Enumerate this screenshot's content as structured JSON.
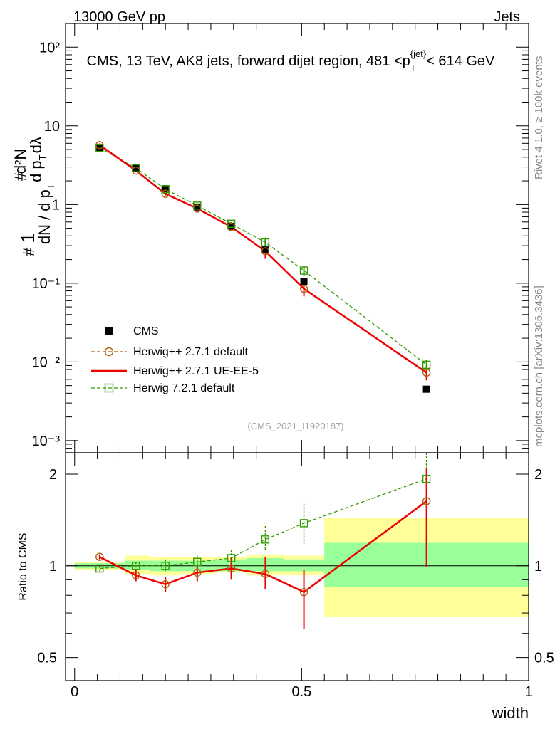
{
  "header": {
    "left": "13000 GeV pp",
    "right": "Jets",
    "main_title": "CMS, 13 TeV, AK8 jets, forward dijet region, 481 <p_T^{jet}< 614 GeV"
  },
  "side_labels": {
    "rivet": "Rivet 4.1.0, ≥ 100k events",
    "mcplots": "mcplots.cern.ch [arXiv:1306.3436]"
  },
  "analysis_tag": "(CMS_2021_I1920187)",
  "colors": {
    "data": "#000000",
    "herwigpp_default": "#b06010",
    "herwigpp_ueee5": "#ee0000",
    "herwig7": "#339900",
    "band_inner": "#99ff99",
    "band_outer": "#ffff99"
  },
  "chart_data": [
    {
      "type": "scatter",
      "panel": "main",
      "yscale": "log",
      "ylim": [
        0.0007,
        200
      ],
      "xlim": [
        -0.02,
        1.0
      ],
      "ylabel": "1 / (dN/dp_T) · d²N/(dp_T dλ)",
      "x_ticks": [
        "0",
        "0.5",
        "1"
      ],
      "y_ticks": [
        "10⁻³",
        "10⁻²",
        "10⁻¹",
        "1",
        "10",
        "10²"
      ],
      "x": [
        0.055,
        0.135,
        0.2,
        0.27,
        0.345,
        0.42,
        0.505,
        0.775
      ],
      "bin_edges": [
        0.0,
        0.11,
        0.165,
        0.235,
        0.305,
        0.38,
        0.46,
        0.55,
        1.0
      ],
      "series": [
        {
          "name": "CMS",
          "style": "square-filled",
          "values": [
            5.3,
            2.9,
            1.55,
            0.93,
            0.53,
            0.27,
            0.105,
            0.0045
          ]
        },
        {
          "name": "Herwig++ 2.7.1 default",
          "style": "circle-open-dashed",
          "values": [
            5.7,
            2.7,
            1.37,
            0.89,
            0.52,
            0.255,
            0.085,
            0.0073
          ]
        },
        {
          "name": "Herwig++ 2.7.1 UE-EE-5",
          "style": "solid-line",
          "values": [
            5.7,
            2.7,
            1.37,
            0.89,
            0.52,
            0.255,
            0.085,
            0.0073
          ]
        },
        {
          "name": "Herwig 7.2.1 default",
          "style": "square-open-dashed",
          "values": [
            5.25,
            2.9,
            1.57,
            0.97,
            0.57,
            0.33,
            0.145,
            0.0092
          ]
        }
      ]
    },
    {
      "type": "line",
      "panel": "ratio",
      "ylabel": "Ratio to CMS",
      "xlabel": "width",
      "ylim": [
        0.42,
        2.35
      ],
      "x_ticks": [
        "0",
        "0.5",
        "1"
      ],
      "y_ticks": [
        "0.5",
        "1",
        "2"
      ],
      "x": [
        0.055,
        0.135,
        0.2,
        0.27,
        0.345,
        0.42,
        0.505,
        0.775
      ],
      "bands": {
        "bin_edges": [
          0.0,
          0.11,
          0.165,
          0.235,
          0.305,
          0.38,
          0.46,
          0.55,
          1.0
        ],
        "inner": [
          [
            0.98,
            1.02
          ],
          [
            0.97,
            1.04
          ],
          [
            0.96,
            1.04
          ],
          [
            0.96,
            1.04
          ],
          [
            0.96,
            1.05
          ],
          [
            0.96,
            1.06
          ],
          [
            0.96,
            1.05
          ],
          [
            0.85,
            1.19
          ]
        ],
        "outer": [
          [
            0.97,
            1.03
          ],
          [
            0.94,
            1.08
          ],
          [
            0.93,
            1.07
          ],
          [
            0.94,
            1.07
          ],
          [
            0.95,
            1.07
          ],
          [
            0.93,
            1.09
          ],
          [
            0.93,
            1.08
          ],
          [
            0.68,
            1.44
          ]
        ]
      },
      "series": [
        {
          "name": "Herwig++ 2.7.1 UE-EE-5",
          "values": [
            1.07,
            0.93,
            0.87,
            0.95,
            0.98,
            0.94,
            0.82,
            1.63
          ],
          "err_lo": [
            0.02,
            0.04,
            0.05,
            0.06,
            0.08,
            0.1,
            0.2,
            0.64
          ],
          "err_hi": [
            0.02,
            0.04,
            0.05,
            0.06,
            0.08,
            0.13,
            0.15,
            0.45
          ]
        },
        {
          "name": "Herwig 7.2.1 default",
          "values": [
            0.98,
            1.0,
            1.0,
            1.03,
            1.06,
            1.22,
            1.38,
            1.93
          ],
          "err_lo": [
            0.02,
            0.03,
            0.04,
            0.05,
            0.07,
            0.1,
            0.2,
            0.5
          ],
          "err_hi": [
            0.02,
            0.03,
            0.05,
            0.05,
            0.07,
            0.13,
            0.22,
            0.45
          ]
        }
      ]
    }
  ]
}
